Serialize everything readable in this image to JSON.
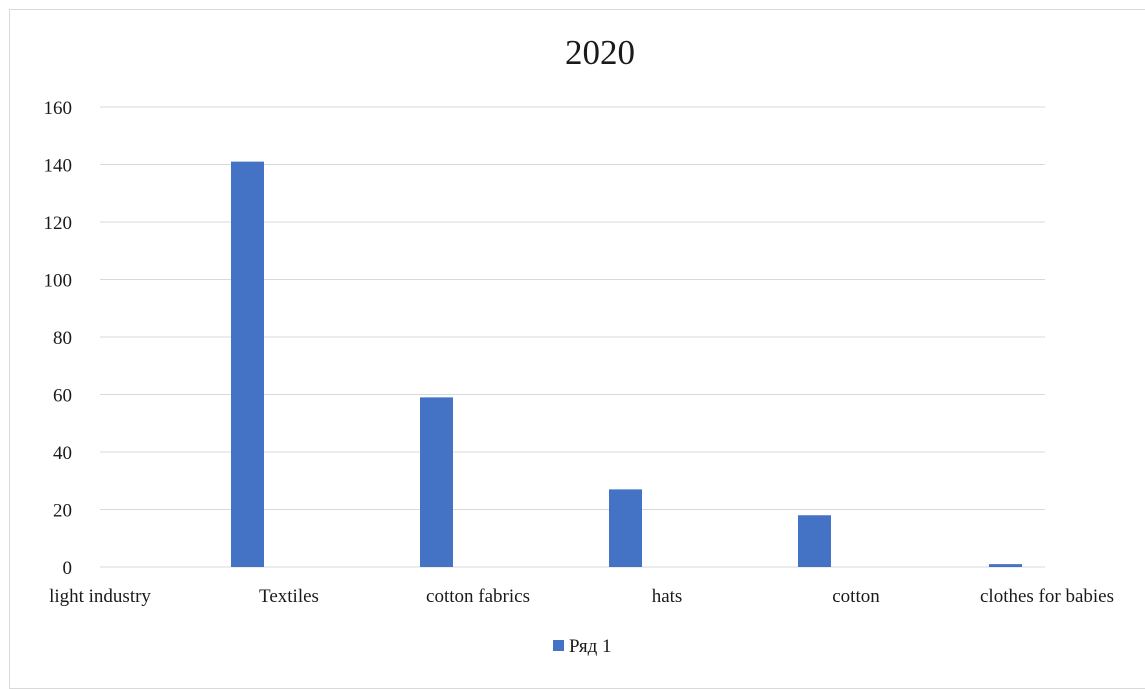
{
  "chart_data": {
    "type": "bar",
    "title": "2020",
    "xlabel": "",
    "ylabel": "",
    "categories": [
      "light industry",
      "Textiles",
      "cotton fabrics",
      "hats",
      "cotton",
      "clothes for babies"
    ],
    "series": [
      {
        "name": "Ряд 1",
        "values": [
          0,
          141,
          59,
          27,
          18,
          1
        ],
        "color": "#4472c4"
      }
    ],
    "ylim": [
      0,
      160
    ],
    "yticks": [
      0,
      20,
      40,
      60,
      80,
      100,
      120,
      140,
      160
    ],
    "grid": true,
    "legend_position": "bottom"
  }
}
